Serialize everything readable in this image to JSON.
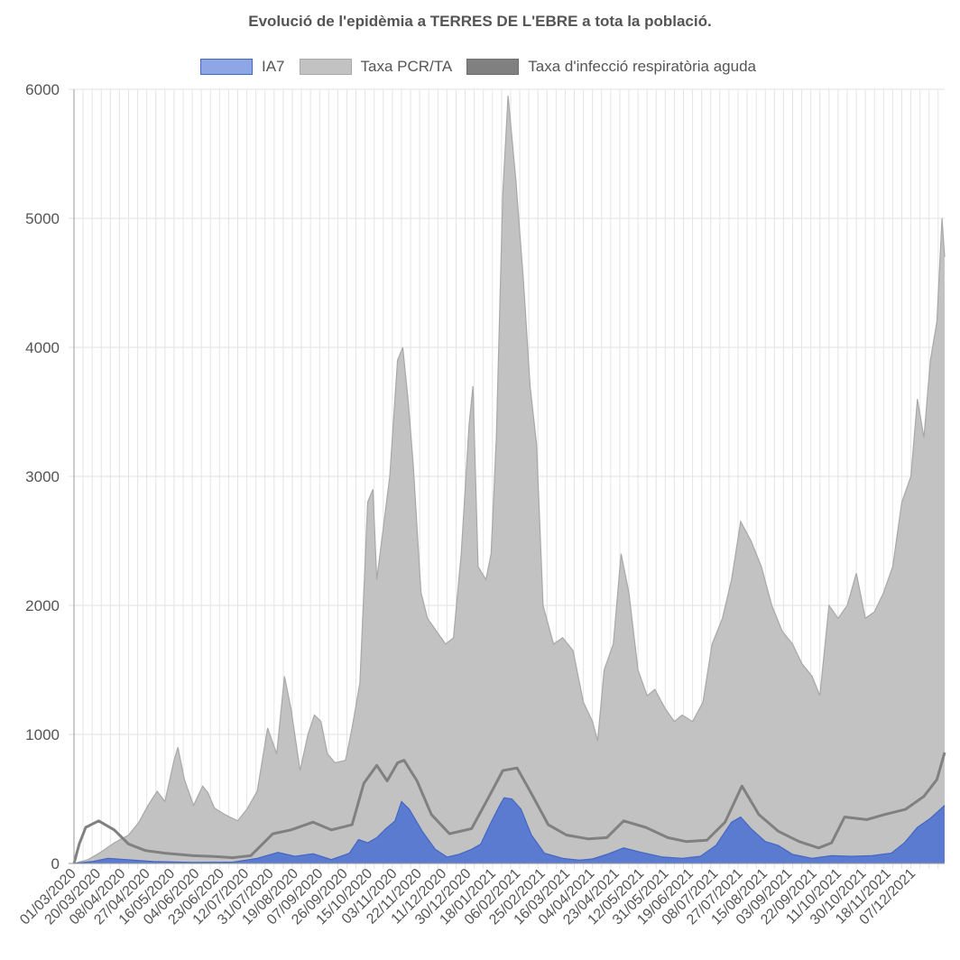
{
  "chart_data": {
    "type": "area",
    "title": "Evolució de l'epidèmia a TERRES DE L'EBRE a tota la població.",
    "xlabel": "",
    "ylabel": "",
    "ylim": [
      0,
      6000
    ],
    "yticks": [
      0,
      1000,
      2000,
      3000,
      4000,
      5000,
      6000
    ],
    "x_start": "01/03/2020",
    "x_end": "31/12/2021",
    "x_tick_labels": [
      "01/03/2020",
      "20/03/2020",
      "08/04/2020",
      "27/04/2020",
      "16/05/2020",
      "04/06/2020",
      "23/06/2020",
      "12/07/2020",
      "31/07/2020",
      "19/08/2020",
      "07/09/2020",
      "26/09/2020",
      "15/10/2020",
      "03/11/2020",
      "22/11/2020",
      "11/12/2020",
      "30/12/2020",
      "18/01/2021",
      "06/02/2021",
      "25/02/2021",
      "16/03/2021",
      "04/04/2021",
      "23/04/2021",
      "12/05/2021",
      "31/05/2021",
      "19/06/2021",
      "08/07/2021",
      "27/07/2021",
      "15/08/2021",
      "03/09/2021",
      "22/09/2021",
      "11/10/2021",
      "30/10/2021",
      "18/11/2021",
      "07/12/2021"
    ],
    "grid": true,
    "legend_position": "top",
    "series": [
      {
        "name": "IA7",
        "fill": "#5A7BD0",
        "stroke": "#4466C4",
        "legend_fill": "#8FA6E6",
        "points": [
          [
            "01/03/2020",
            0
          ],
          [
            "15/03/2020",
            15
          ],
          [
            "27/03/2020",
            40
          ],
          [
            "10/04/2020",
            30
          ],
          [
            "01/05/2020",
            15
          ],
          [
            "01/06/2020",
            8
          ],
          [
            "01/07/2020",
            10
          ],
          [
            "20/07/2020",
            40
          ],
          [
            "05/08/2020",
            85
          ],
          [
            "18/08/2020",
            55
          ],
          [
            "01/09/2020",
            75
          ],
          [
            "15/09/2020",
            30
          ],
          [
            "29/09/2020",
            80
          ],
          [
            "06/10/2020",
            185
          ],
          [
            "13/10/2020",
            160
          ],
          [
            "20/10/2020",
            200
          ],
          [
            "27/10/2020",
            270
          ],
          [
            "03/11/2020",
            330
          ],
          [
            "08/11/2020",
            480
          ],
          [
            "14/11/2020",
            420
          ],
          [
            "24/11/2020",
            250
          ],
          [
            "04/12/2020",
            110
          ],
          [
            "13/12/2020",
            50
          ],
          [
            "22/12/2020",
            70
          ],
          [
            "01/01/2021",
            110
          ],
          [
            "08/01/2021",
            150
          ],
          [
            "15/01/2021",
            300
          ],
          [
            "22/01/2021",
            440
          ],
          [
            "26/01/2021",
            510
          ],
          [
            "01/02/2021",
            500
          ],
          [
            "08/02/2021",
            420
          ],
          [
            "16/02/2021",
            220
          ],
          [
            "26/02/2021",
            80
          ],
          [
            "12/03/2021",
            40
          ],
          [
            "25/03/2021",
            25
          ],
          [
            "04/04/2021",
            35
          ],
          [
            "15/04/2021",
            70
          ],
          [
            "28/04/2021",
            120
          ],
          [
            "12/05/2021",
            85
          ],
          [
            "28/05/2021",
            50
          ],
          [
            "12/06/2021",
            40
          ],
          [
            "26/06/2021",
            55
          ],
          [
            "08/07/2021",
            140
          ],
          [
            "20/07/2021",
            320
          ],
          [
            "27/07/2021",
            360
          ],
          [
            "04/08/2021",
            270
          ],
          [
            "15/08/2021",
            170
          ],
          [
            "25/08/2021",
            140
          ],
          [
            "05/09/2021",
            70
          ],
          [
            "20/09/2021",
            40
          ],
          [
            "05/10/2021",
            60
          ],
          [
            "20/10/2021",
            55
          ],
          [
            "05/11/2021",
            60
          ],
          [
            "20/11/2021",
            80
          ],
          [
            "30/11/2021",
            160
          ],
          [
            "10/12/2021",
            280
          ],
          [
            "20/12/2021",
            350
          ],
          [
            "31/12/2021",
            450
          ]
        ]
      },
      {
        "name": "Taxa PCR/TA",
        "fill": "#C2C2C2",
        "stroke": "#A8A8A8",
        "legend_fill": "#C2C2C2",
        "points": [
          [
            "01/03/2020",
            0
          ],
          [
            "12/03/2020",
            30
          ],
          [
            "22/03/2020",
            90
          ],
          [
            "01/04/2020",
            160
          ],
          [
            "12/04/2020",
            220
          ],
          [
            "20/04/2020",
            320
          ],
          [
            "27/04/2020",
            450
          ],
          [
            "04/05/2020",
            560
          ],
          [
            "10/05/2020",
            480
          ],
          [
            "17/05/2020",
            800
          ],
          [
            "20/05/2020",
            900
          ],
          [
            "25/05/2020",
            650
          ],
          [
            "01/06/2020",
            450
          ],
          [
            "08/06/2020",
            600
          ],
          [
            "12/06/2020",
            550
          ],
          [
            "17/06/2020",
            430
          ],
          [
            "25/06/2020",
            380
          ],
          [
            "05/07/2020",
            330
          ],
          [
            "12/07/2020",
            420
          ],
          [
            "20/07/2020",
            560
          ],
          [
            "28/07/2020",
            1050
          ],
          [
            "04/08/2020",
            850
          ],
          [
            "10/08/2020",
            1450
          ],
          [
            "15/08/2020",
            1200
          ],
          [
            "22/08/2020",
            720
          ],
          [
            "28/08/2020",
            1000
          ],
          [
            "02/09/2020",
            1150
          ],
          [
            "07/09/2020",
            1100
          ],
          [
            "12/09/2020",
            850
          ],
          [
            "18/09/2020",
            780
          ],
          [
            "26/09/2020",
            800
          ],
          [
            "01/10/2020",
            1050
          ],
          [
            "07/10/2020",
            1400
          ],
          [
            "13/10/2020",
            2800
          ],
          [
            "17/10/2020",
            2900
          ],
          [
            "20/10/2020",
            2200
          ],
          [
            "25/10/2020",
            2600
          ],
          [
            "30/10/2020",
            3000
          ],
          [
            "05/11/2020",
            3900
          ],
          [
            "09/11/2020",
            4000
          ],
          [
            "13/11/2020",
            3600
          ],
          [
            "17/11/2020",
            3100
          ],
          [
            "23/11/2020",
            2100
          ],
          [
            "28/11/2020",
            1900
          ],
          [
            "05/12/2020",
            1800
          ],
          [
            "12/12/2020",
            1700
          ],
          [
            "18/12/2020",
            1750
          ],
          [
            "24/12/2020",
            2400
          ],
          [
            "30/12/2020",
            3400
          ],
          [
            "02/01/2021",
            3700
          ],
          [
            "06/01/2021",
            2300
          ],
          [
            "12/01/2021",
            2200
          ],
          [
            "16/01/2021",
            2400
          ],
          [
            "20/01/2021",
            3300
          ],
          [
            "25/01/2021",
            5200
          ],
          [
            "29/01/2021",
            5950
          ],
          [
            "04/02/2021",
            5300
          ],
          [
            "10/02/2021",
            4500
          ],
          [
            "15/02/2021",
            3700
          ],
          [
            "20/02/2021",
            3250
          ],
          [
            "25/02/2021",
            2000
          ],
          [
            "05/03/2021",
            1700
          ],
          [
            "12/03/2021",
            1750
          ],
          [
            "20/03/2021",
            1650
          ],
          [
            "28/03/2021",
            1250
          ],
          [
            "04/04/2021",
            1100
          ],
          [
            "08/04/2021",
            950
          ],
          [
            "13/04/2021",
            1500
          ],
          [
            "20/04/2021",
            1700
          ],
          [
            "26/04/2021",
            2400
          ],
          [
            "02/05/2021",
            2100
          ],
          [
            "09/05/2021",
            1500
          ],
          [
            "16/05/2021",
            1300
          ],
          [
            "22/05/2021",
            1350
          ],
          [
            "30/05/2021",
            1200
          ],
          [
            "06/06/2021",
            1100
          ],
          [
            "12/06/2021",
            1150
          ],
          [
            "20/06/2021",
            1100
          ],
          [
            "28/06/2021",
            1250
          ],
          [
            "05/07/2021",
            1700
          ],
          [
            "13/07/2021",
            1900
          ],
          [
            "20/07/2021",
            2200
          ],
          [
            "27/07/2021",
            2650
          ],
          [
            "04/08/2021",
            2500
          ],
          [
            "12/08/2021",
            2300
          ],
          [
            "20/08/2021",
            2000
          ],
          [
            "28/08/2021",
            1800
          ],
          [
            "05/09/2021",
            1700
          ],
          [
            "12/09/2021",
            1550
          ],
          [
            "20/09/2021",
            1450
          ],
          [
            "26/09/2021",
            1300
          ],
          [
            "03/10/2021",
            2000
          ],
          [
            "10/10/2021",
            1900
          ],
          [
            "17/10/2021",
            2000
          ],
          [
            "24/10/2021",
            2250
          ],
          [
            "31/10/2021",
            1900
          ],
          [
            "07/11/2021",
            1950
          ],
          [
            "14/11/2021",
            2100
          ],
          [
            "21/11/2021",
            2300
          ],
          [
            "28/11/2021",
            2800
          ],
          [
            "05/12/2021",
            3000
          ],
          [
            "10/12/2021",
            3600
          ],
          [
            "15/12/2021",
            3300
          ],
          [
            "20/12/2021",
            3900
          ],
          [
            "25/12/2021",
            4200
          ],
          [
            "29/12/2021",
            5000
          ],
          [
            "31/12/2021",
            4700
          ]
        ]
      },
      {
        "name": "Taxa d'infecció respiratòria aguda",
        "fill": "none",
        "stroke": "#808080",
        "legend_fill": "#808080",
        "points": [
          [
            "01/03/2020",
            0
          ],
          [
            "05/03/2020",
            150
          ],
          [
            "10/03/2020",
            280
          ],
          [
            "20/03/2020",
            330
          ],
          [
            "01/04/2020",
            260
          ],
          [
            "12/04/2020",
            150
          ],
          [
            "25/04/2020",
            100
          ],
          [
            "10/05/2020",
            80
          ],
          [
            "01/06/2020",
            60
          ],
          [
            "15/06/2020",
            55
          ],
          [
            "01/07/2020",
            45
          ],
          [
            "15/07/2020",
            60
          ],
          [
            "01/08/2020",
            230
          ],
          [
            "15/08/2020",
            260
          ],
          [
            "01/09/2020",
            320
          ],
          [
            "15/09/2020",
            260
          ],
          [
            "01/10/2020",
            300
          ],
          [
            "10/10/2020",
            620
          ],
          [
            "20/10/2020",
            760
          ],
          [
            "28/10/2020",
            640
          ],
          [
            "05/11/2020",
            780
          ],
          [
            "10/11/2020",
            800
          ],
          [
            "20/11/2020",
            640
          ],
          [
            "01/12/2020",
            380
          ],
          [
            "15/12/2020",
            230
          ],
          [
            "01/01/2021",
            270
          ],
          [
            "15/01/2021",
            530
          ],
          [
            "25/01/2021",
            720
          ],
          [
            "05/02/2021",
            740
          ],
          [
            "15/02/2021",
            560
          ],
          [
            "01/03/2021",
            300
          ],
          [
            "15/03/2021",
            220
          ],
          [
            "01/04/2021",
            190
          ],
          [
            "15/04/2021",
            200
          ],
          [
            "28/04/2021",
            330
          ],
          [
            "15/05/2021",
            280
          ],
          [
            "01/06/2021",
            200
          ],
          [
            "15/06/2021",
            170
          ],
          [
            "01/07/2021",
            180
          ],
          [
            "15/07/2021",
            320
          ],
          [
            "28/07/2021",
            600
          ],
          [
            "10/08/2021",
            380
          ],
          [
            "25/08/2021",
            250
          ],
          [
            "10/09/2021",
            170
          ],
          [
            "25/09/2021",
            120
          ],
          [
            "05/10/2021",
            160
          ],
          [
            "15/10/2021",
            360
          ],
          [
            "01/11/2021",
            340
          ],
          [
            "15/11/2021",
            380
          ],
          [
            "01/12/2021",
            420
          ],
          [
            "15/12/2021",
            520
          ],
          [
            "25/12/2021",
            650
          ],
          [
            "31/12/2021",
            860
          ]
        ]
      }
    ]
  }
}
